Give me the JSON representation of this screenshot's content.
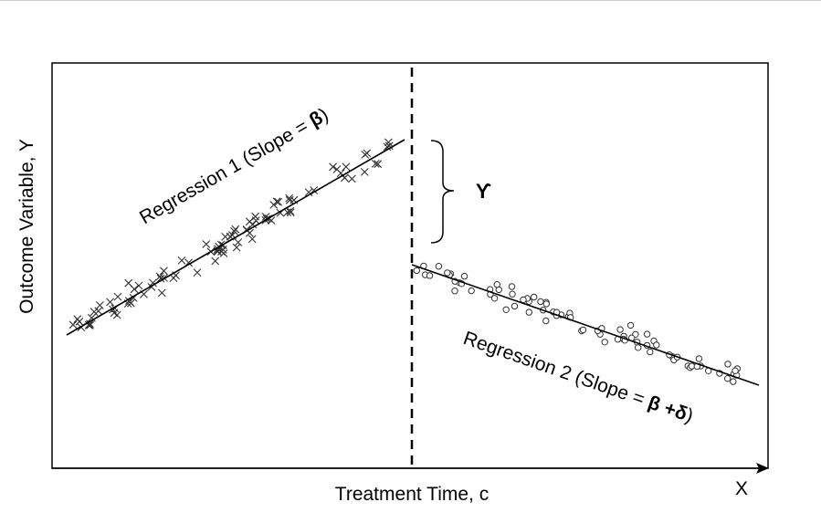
{
  "labels": {
    "y_axis": "Outcome Variable, Y",
    "x_axis": "Treatment Time, c",
    "x_end": "X",
    "jump": "ϒ",
    "reg1_text": "Regression 1 (Slope = ",
    "reg1_sym": "β",
    "reg1_close": ")",
    "reg2_text": "Regression 2 (Slope = ",
    "reg2_sym": "β +δ",
    "reg2_close": ")"
  },
  "colors": {
    "ink": "#000000",
    "marker": "#333333",
    "background": "#ffffff"
  },
  "markers": {
    "left": "x-marker",
    "right": "circle-marker"
  }
}
